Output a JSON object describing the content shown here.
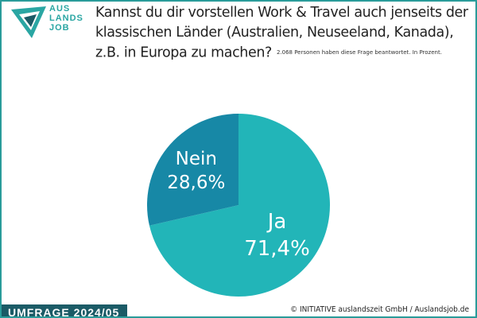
{
  "logo": {
    "lines": [
      "AUS",
      "LANDS",
      "JOB"
    ]
  },
  "chart_data": {
    "type": "pie",
    "title": "Kannst du dir vorstellen Work & Travel auch jenseits der klassischen Länder (Australien, Neuseeland, Kanada), z.B. in Europa zu machen?",
    "subtitle": "2.068 Personen haben diese Frage beantwortet. In Prozent.",
    "categories": [
      "Ja",
      "Nein"
    ],
    "values": [
      71.4,
      28.6
    ],
    "value_labels": [
      "71,4%",
      "28,6%"
    ],
    "colors": [
      "#22b5b8",
      "#1788a6"
    ]
  },
  "banner": "UMFRAGE 2024/05",
  "footer": "© INITIATIVE auslandszeit GmbH / Auslandsjob.de"
}
